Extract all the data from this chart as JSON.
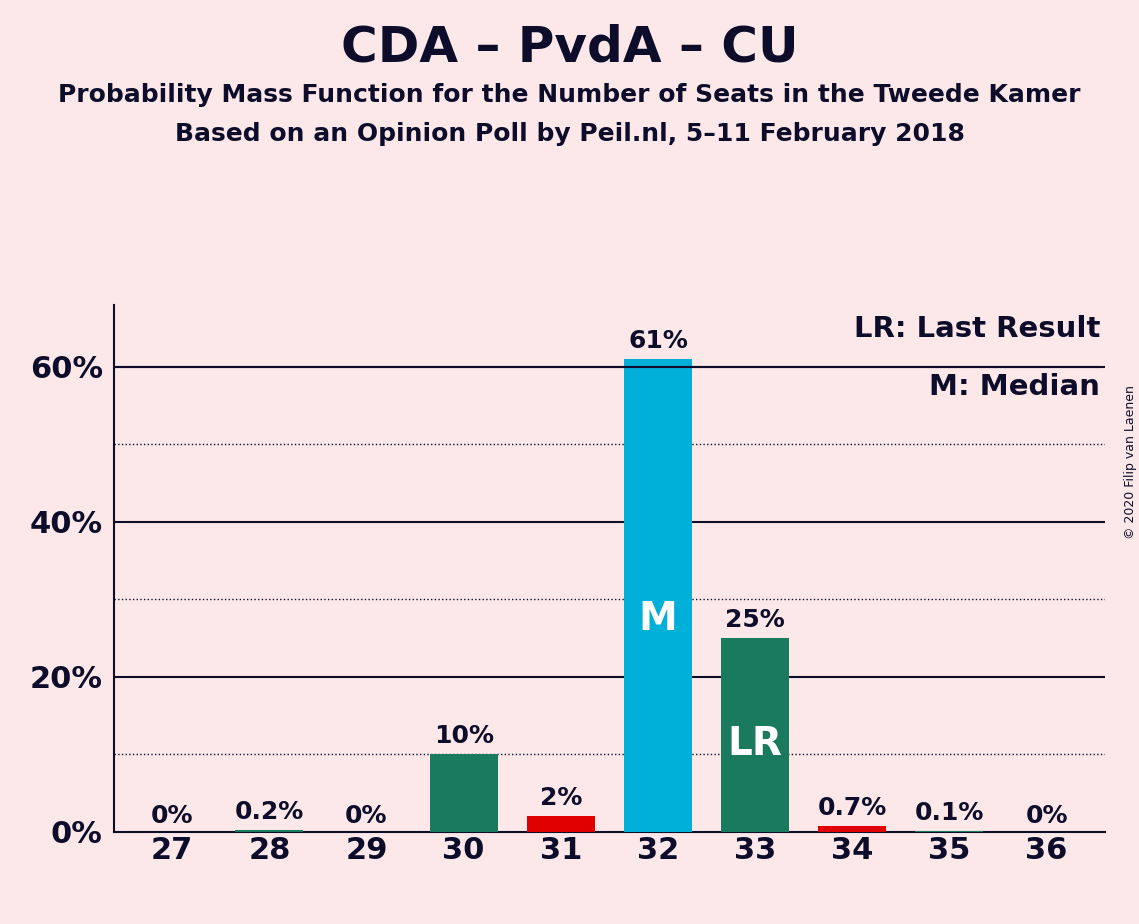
{
  "title": "CDA – PvdA – CU",
  "subtitle1": "Probability Mass Function for the Number of Seats in the Tweede Kamer",
  "subtitle2": "Based on an Opinion Poll by Peil.nl, 5–11 February 2018",
  "copyright": "© 2020 Filip van Laenen",
  "background_color": "#fce8e8",
  "seats": [
    27,
    28,
    29,
    30,
    31,
    32,
    33,
    34,
    35,
    36
  ],
  "probabilities": [
    0.0,
    0.2,
    0.0,
    10.0,
    2.0,
    61.0,
    25.0,
    0.7,
    0.1,
    0.0
  ],
  "bar_colors": [
    "#1a7a5e",
    "#1a7a5e",
    "#1a7a5e",
    "#1a7a5e",
    "#e00000",
    "#00b0d8",
    "#1a7a5e",
    "#e00000",
    "#1a7a5e",
    "#1a7a5e"
  ],
  "label_texts": [
    "0%",
    "0.2%",
    "0%",
    "10%",
    "2%",
    "61%",
    "25%",
    "0.7%",
    "0.1%",
    "0%"
  ],
  "median_seat": 32,
  "last_result_seat": 33,
  "median_label": "M",
  "last_result_label": "LR",
  "legend_lr": "LR: Last Result",
  "legend_m": "M: Median",
  "ylim_max": 68,
  "yticks_major": [
    0,
    20,
    40,
    60
  ],
  "ytick_labels_major": [
    "0%",
    "20%",
    "40%",
    "60%"
  ],
  "yticks_minor_dotted": [
    10,
    30,
    50
  ],
  "yticks_solid": [
    20,
    40,
    60
  ],
  "bar_width": 0.7,
  "title_fontsize": 36,
  "subtitle_fontsize": 18,
  "axis_fontsize": 22,
  "label_fontsize": 18,
  "inner_label_fontsize": 28,
  "legend_fontsize": 21,
  "copyright_fontsize": 9,
  "text_color": "#0d0d2b"
}
